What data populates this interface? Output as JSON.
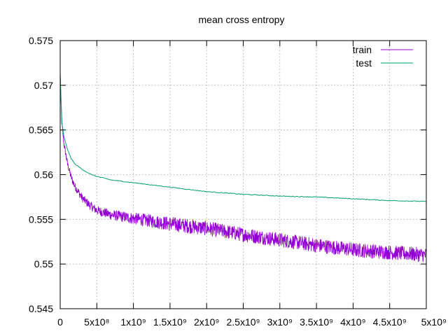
{
  "chart_data": {
    "type": "line",
    "title": "mean cross entropy",
    "xlabel": "",
    "ylabel": "",
    "xlim": [
      0,
      5000000000
    ],
    "ylim": [
      0.545,
      0.575
    ],
    "x_ticks": [
      {
        "value": 0,
        "label": "0"
      },
      {
        "value": 500000000,
        "label": "5x10⁸"
      },
      {
        "value": 1000000000,
        "label": "1x10⁹"
      },
      {
        "value": 1500000000,
        "label": "1.5x10⁹"
      },
      {
        "value": 2000000000,
        "label": "2x10⁹"
      },
      {
        "value": 2500000000,
        "label": "2.5x10⁹"
      },
      {
        "value": 3000000000,
        "label": "3x10⁹"
      },
      {
        "value": 3500000000,
        "label": "3.5x10⁹"
      },
      {
        "value": 4000000000,
        "label": "4x10⁹"
      },
      {
        "value": 4500000000,
        "label": "4.5x10⁹"
      },
      {
        "value": 5000000000,
        "label": "5x10⁹"
      }
    ],
    "y_ticks": [
      {
        "value": 0.545,
        "label": "0.545"
      },
      {
        "value": 0.55,
        "label": "0.55"
      },
      {
        "value": 0.555,
        "label": "0.555"
      },
      {
        "value": 0.56,
        "label": "0.56"
      },
      {
        "value": 0.565,
        "label": "0.565"
      },
      {
        "value": 0.57,
        "label": "0.57"
      },
      {
        "value": 0.575,
        "label": "0.575"
      }
    ],
    "grid": true,
    "legend_position": "top-right",
    "series": [
      {
        "name": "train",
        "color": "#9400d3",
        "noisy": true,
        "x": [
          0,
          20000000,
          50000000,
          100000000,
          150000000,
          200000000,
          300000000,
          400000000,
          500000000,
          700000000,
          1000000000,
          1500000000,
          2000000000,
          2500000000,
          3000000000,
          3500000000,
          4000000000,
          4500000000,
          5000000000
        ],
        "y": [
          0.5712,
          0.566,
          0.5635,
          0.5612,
          0.5597,
          0.5587,
          0.5574,
          0.5566,
          0.556,
          0.5555,
          0.5551,
          0.5545,
          0.554,
          0.5533,
          0.5527,
          0.5521,
          0.5516,
          0.5513,
          0.551
        ]
      },
      {
        "name": "test",
        "color": "#009e73",
        "noisy": false,
        "x": [
          0,
          20000000,
          50000000,
          100000000,
          150000000,
          200000000,
          300000000,
          400000000,
          500000000,
          700000000,
          1000000000,
          1500000000,
          2000000000,
          2500000000,
          3000000000,
          3500000000,
          4000000000,
          4500000000,
          5000000000
        ],
        "y": [
          0.5715,
          0.566,
          0.5643,
          0.5628,
          0.5618,
          0.5612,
          0.5606,
          0.5601,
          0.5598,
          0.5594,
          0.5591,
          0.5586,
          0.5581,
          0.5578,
          0.5576,
          0.5575,
          0.5573,
          0.5571,
          0.557
        ]
      }
    ]
  }
}
